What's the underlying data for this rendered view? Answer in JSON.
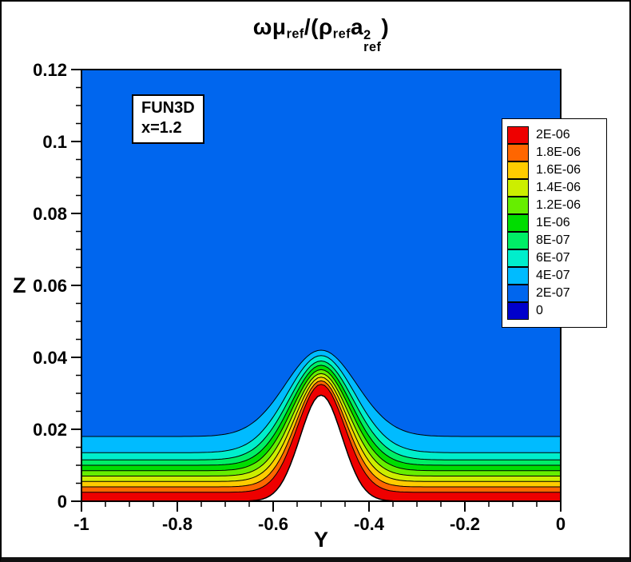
{
  "chart_data": {
    "type": "contour",
    "title": "ωμref/(ρrefaref2)",
    "title_parts": {
      "p1": "ωμ",
      "p2": "ref",
      "p3": "/(ρ",
      "p4": "ref",
      "p5": "a",
      "p6": "2",
      "p7": "ref",
      "p8": ")"
    },
    "xlabel": "Y",
    "ylabel": "Z",
    "xlim": [
      -1,
      0
    ],
    "ylim": [
      0,
      0.12
    ],
    "x_tick_values": [
      -1,
      -0.8,
      -0.6,
      -0.4,
      -0.2,
      0
    ],
    "x_tick_labels": [
      "-1",
      "-0.8",
      "-0.6",
      "-0.4",
      "-0.2",
      "0"
    ],
    "x_minor_step": 0.05,
    "y_tick_values": [
      0,
      0.02,
      0.04,
      0.06,
      0.08,
      0.1,
      0.12
    ],
    "y_tick_labels": [
      "0",
      "0.02",
      "0.04",
      "0.06",
      "0.08",
      "0.1",
      "0.12"
    ],
    "y_minor_step": 0.005,
    "annotation": {
      "line1": "FUN3D",
      "line2": "x=1.2"
    },
    "legend": {
      "levels": [
        "2E-06",
        "1.8E-06",
        "1.6E-06",
        "1.4E-06",
        "1.2E-06",
        "1E-06",
        "8E-07",
        "6E-07",
        "4E-07",
        "2E-07",
        "0"
      ],
      "colors": [
        "#EE0000",
        "#FF6600",
        "#FFCC00",
        "#CCEE00",
        "#66EE00",
        "#00DD00",
        "#00EE66",
        "#00EECC",
        "#00BBFF",
        "#0066EE",
        "#0000CC"
      ]
    },
    "field": {
      "background_color": "#0066EE",
      "bump": {
        "center_y": -0.5,
        "sigma": 0.062,
        "peak_z": 0.0295
      },
      "band_boundaries": [
        {
          "level": "4E-07",
          "base_z": 0.018,
          "peak_z": 0.042,
          "sigma": 0.105,
          "fill_below": "#00BBFF"
        },
        {
          "level": "6E-07",
          "base_z": 0.0135,
          "peak_z": 0.0405,
          "sigma": 0.1,
          "fill_below": "#00EECC"
        },
        {
          "level": "8E-07",
          "base_z": 0.0115,
          "peak_z": 0.039,
          "sigma": 0.095,
          "fill_below": "#00EE66"
        },
        {
          "level": "1E-06",
          "base_z": 0.01,
          "peak_z": 0.0378,
          "sigma": 0.09,
          "fill_below": "#00DD00"
        },
        {
          "level": "1.2E-06",
          "base_z": 0.0085,
          "peak_z": 0.0366,
          "sigma": 0.086,
          "fill_below": "#66EE00"
        },
        {
          "level": "1.4E-06",
          "base_z": 0.007,
          "peak_z": 0.0355,
          "sigma": 0.082,
          "fill_below": "#CCEE00"
        },
        {
          "level": "1.6E-06",
          "base_z": 0.0055,
          "peak_z": 0.0345,
          "sigma": 0.078,
          "fill_below": "#FFCC00"
        },
        {
          "level": "1.8E-06",
          "base_z": 0.004,
          "peak_z": 0.0335,
          "sigma": 0.074,
          "fill_below": "#FF6600"
        },
        {
          "level": "2E-06",
          "base_z": 0.0025,
          "peak_z": 0.0325,
          "sigma": 0.07,
          "fill_below": "#EE0000"
        }
      ]
    }
  }
}
